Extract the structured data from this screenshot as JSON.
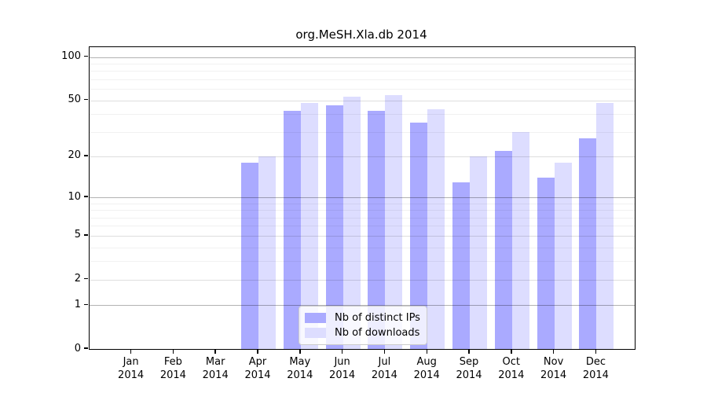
{
  "title": "org.MeSH.Xla.db 2014",
  "chart_data": {
    "type": "bar",
    "categories": [
      "Jan",
      "Feb",
      "Mar",
      "Apr",
      "May",
      "Jun",
      "Jul",
      "Aug",
      "Sep",
      "Oct",
      "Nov",
      "Dec"
    ],
    "year_label": "2014",
    "series": [
      {
        "name": "Nb of distinct IPs",
        "color": "#aaaaff",
        "values": [
          0,
          0,
          0,
          18,
          42,
          46,
          42,
          35,
          13,
          22,
          14,
          27
        ]
      },
      {
        "name": "Nb of downloads",
        "color": "#ddddff",
        "values": [
          0,
          0,
          0,
          20,
          48,
          53,
          54,
          43,
          20,
          30,
          18,
          48
        ]
      }
    ],
    "yscale": "log1p",
    "ylim": [
      0,
      117
    ],
    "y_major_ticks": [
      0,
      1,
      2,
      5,
      10,
      20,
      50,
      100
    ],
    "y_minor_gridlines": [
      3,
      4,
      6,
      7,
      8,
      9,
      30,
      40,
      60,
      70,
      80,
      90
    ],
    "y_emphasized_gridlines": [
      1,
      10,
      100
    ],
    "grid": true,
    "gridlines_over_bars": true,
    "legend_position": "lower center",
    "axis_color": "#000000",
    "background_color": "#ffffff"
  }
}
